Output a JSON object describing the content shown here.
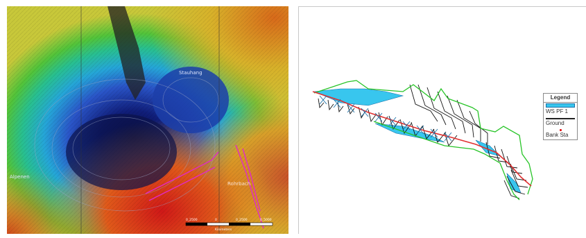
{
  "map": {
    "place_labels": [
      "Alpenen",
      "Rohrbach",
      "Stauhang"
    ],
    "scale_bar": {
      "ticks": [
        "0_2500",
        "0",
        "0_2500",
        "0_5000"
      ],
      "unit": "Kilometers"
    }
  },
  "profile": {
    "legend": {
      "title": "Legend",
      "items": [
        "WS PF 1",
        "Ground",
        "Bank Sta"
      ]
    },
    "colors": {
      "water": "#38c6ee",
      "ground": "#000000",
      "bank": "#e00000",
      "bank_line": "#27c427",
      "river_line": "#e03030"
    }
  }
}
